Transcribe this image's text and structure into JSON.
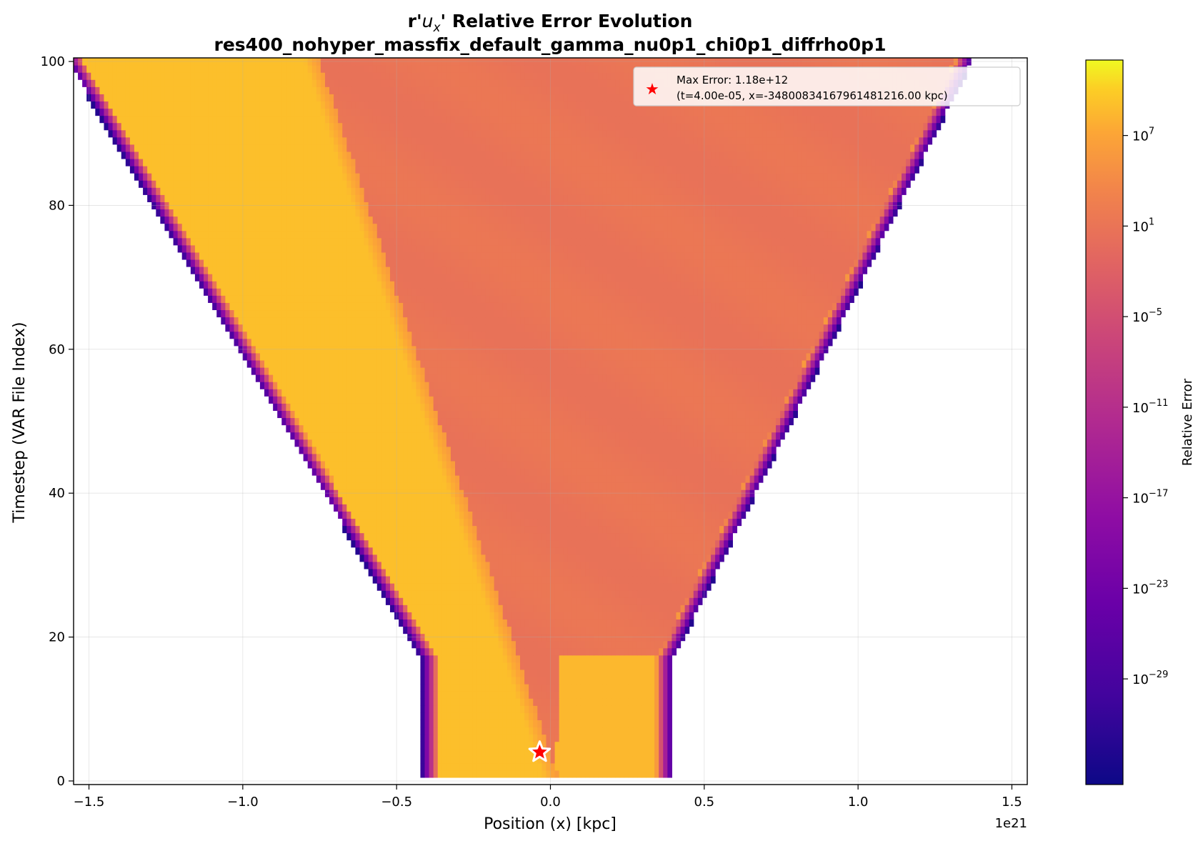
{
  "chart_data": {
    "type": "heatmap",
    "title_line1_prefix": "r'",
    "title_line1_var": "u",
    "title_line1_sub": "x",
    "title_line1_suffix": "' Relative Error Evolution",
    "title_line2": "res400_nohyper_massfix_default_gamma_nu0p1_chi0p1_diffrho0p1",
    "xlabel": "Position (x) [kpc]",
    "ylabel": "Timestep (VAR File Index)",
    "x_offset_label": "1e21",
    "xlim": [
      -1.55,
      1.55
    ],
    "ylim": [
      -0.5,
      100.5
    ],
    "x_units_multiplier": "1e21",
    "x_ticks": [
      -1.5,
      -1.0,
      -0.5,
      0.0,
      0.5,
      1.0,
      1.5
    ],
    "x_tick_labels": [
      "−1.5",
      "−1.0",
      "−0.5",
      "0.0",
      "0.5",
      "1.0",
      "1.5"
    ],
    "y_ticks": [
      0,
      20,
      40,
      60,
      80,
      100
    ],
    "y_tick_labels": [
      "0",
      "20",
      "40",
      "60",
      "80",
      "100"
    ],
    "grid": true,
    "colormap": "plasma",
    "colorbar": {
      "label": "Relative Error",
      "scale": "log",
      "min_exponent": -36,
      "max_exponent": 12,
      "ticks": [
        {
          "base": "10",
          "exp": "7",
          "value_exponent": 7
        },
        {
          "base": "10",
          "exp": "1",
          "value_exponent": 1
        },
        {
          "base": "10",
          "exp": "−5",
          "value_exponent": -5
        },
        {
          "base": "10",
          "exp": "−11",
          "value_exponent": -11
        },
        {
          "base": "10",
          "exp": "−17",
          "value_exponent": -17
        },
        {
          "base": "10",
          "exp": "−23",
          "value_exponent": -23
        },
        {
          "base": "10",
          "exp": "−29",
          "value_exponent": -29
        }
      ]
    },
    "field_description_values": {
      "initial_left_edge": -0.4,
      "initial_right_edge": 0.38,
      "final_left_edge": -1.55,
      "final_right_edge": 1.35,
      "break_timestep": 17,
      "interior_log_error": 1.0,
      "front_log_error": 9.0
    },
    "max_error_point": {
      "x": -0.035,
      "t": 4
    },
    "legend": {
      "position": "top-right",
      "line1": "Max Error: 1.18e+12",
      "line2": "(t=4.00e-05, x=-348008341679614812​16.00 kpc)"
    }
  }
}
